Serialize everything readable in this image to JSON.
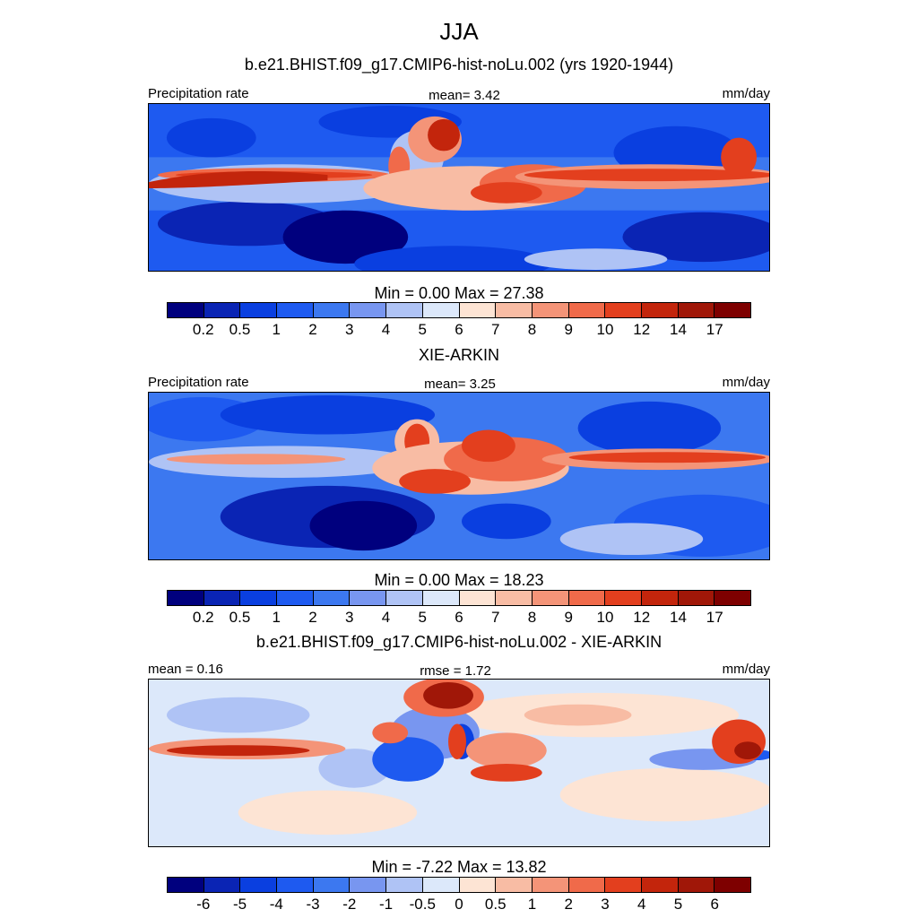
{
  "title": "JJA",
  "panels": [
    {
      "heading": "b.e21.BHIST.f09_g17.CMIP6-hist-noLu.002 (yrs 1920-1944)",
      "left_label": "Precipitation rate",
      "center_label": "mean=   3.42",
      "right_label": "mm/day",
      "minmax": "Min =   0.00 Max =  27.38",
      "ticks": [
        "0.2",
        "0.5",
        "1",
        "2",
        "3",
        "4",
        "5",
        "6",
        "7",
        "8",
        "9",
        "10",
        "12",
        "14",
        "17"
      ]
    },
    {
      "heading": "XIE-ARKIN",
      "left_label": "Precipitation rate",
      "center_label": "mean=   3.25",
      "right_label": "mm/day",
      "minmax": "Min =   0.00 Max =  18.23",
      "ticks": [
        "0.2",
        "0.5",
        "1",
        "2",
        "3",
        "4",
        "5",
        "6",
        "7",
        "8",
        "9",
        "10",
        "12",
        "14",
        "17"
      ]
    },
    {
      "heading": "b.e21.BHIST.f09_g17.CMIP6-hist-noLu.002 - XIE-ARKIN",
      "left_label": "mean =   0.16",
      "center_label": "rmse =   1.72",
      "right_label": "mm/day",
      "minmax": "Min =  -7.22 Max =  13.82",
      "ticks": [
        "-6",
        "-5",
        "-4",
        "-3",
        "-2",
        "-1",
        "-0.5",
        "0",
        "0.5",
        "1",
        "2",
        "3",
        "4",
        "5",
        "6"
      ]
    }
  ],
  "colors": {
    "palette": [
      "#00007e",
      "#0a24b4",
      "#0a3fe0",
      "#1e5af0",
      "#3c78f0",
      "#7896f0",
      "#afc3f5",
      "#dce8fa",
      "#fde4d4",
      "#f8bca4",
      "#f49478",
      "#f06a4a",
      "#e33f1e",
      "#c3250c",
      "#a01708",
      "#7e0000"
    ]
  }
}
